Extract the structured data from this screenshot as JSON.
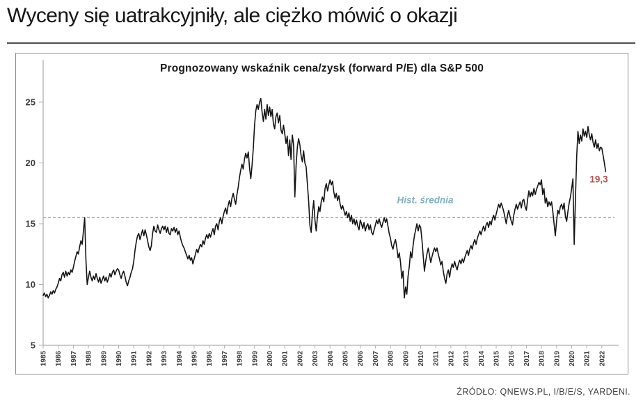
{
  "page": {
    "headline": "Wyceny się uatrakcyjniły, ale ciężko mówić o okazji",
    "source": "ŹRÓDŁO: QNEWS.PL, I/B/E/S, YARDENI."
  },
  "chart_data": {
    "type": "line",
    "title": "Prognozowany wskaźnik cena/zysk (forward P/E) dla S&P 500",
    "xlabel": "",
    "ylabel": "",
    "x_ticks": [
      1985,
      1986,
      1987,
      1988,
      1989,
      1990,
      1991,
      1992,
      1993,
      1994,
      1995,
      1996,
      1997,
      1998,
      1999,
      2000,
      2001,
      2002,
      2003,
      2004,
      2005,
      2006,
      2007,
      2008,
      2009,
      2010,
      2011,
      2012,
      2013,
      2014,
      2015,
      2016,
      2017,
      2018,
      2019,
      2020,
      2021,
      2022
    ],
    "y_ticks": [
      5,
      10,
      15,
      20,
      25
    ],
    "xlim": [
      1985,
      2022.6
    ],
    "ylim": [
      5,
      25.6
    ],
    "grid": false,
    "line_color": "#141414",
    "axis_color": "#9a9a9a",
    "tick_color": "#b0b0b0",
    "average_line": {
      "value": 15.5,
      "color": "#7db0c5",
      "style": "dashed"
    },
    "annotations": [
      {
        "text": "Hist. średnia",
        "year": 2010.3,
        "value": 16.95,
        "color": "#84afc3",
        "italic": true
      },
      {
        "text": "19,3",
        "year": 2021.8,
        "value": 18.65,
        "color": "#b6524e",
        "italic": false
      }
    ],
    "series": [
      {
        "name": "Forward P/E S&P 500",
        "start_year": 1985,
        "points_per_year": 12,
        "values": [
          9.1,
          9.3,
          9.0,
          9.2,
          8.9,
          9.1,
          9.4,
          9.2,
          9.5,
          9.3,
          9.6,
          9.8,
          10.1,
          10.5,
          10.3,
          10.8,
          11.0,
          10.6,
          11.1,
          10.7,
          11.0,
          10.8,
          11.2,
          11.0,
          11.4,
          11.9,
          12.3,
          12.7,
          12.5,
          13.1,
          13.6,
          13.3,
          14.4,
          15.5,
          12.0,
          10.0,
          10.6,
          11.1,
          10.6,
          10.3,
          10.7,
          10.4,
          10.9,
          10.5,
          10.2,
          10.6,
          10.1,
          10.4,
          10.7,
          10.3,
          10.6,
          10.2,
          10.5,
          10.9,
          10.6,
          11.0,
          11.2,
          10.8,
          11.1,
          11.3,
          11.2,
          10.8,
          10.5,
          10.9,
          11.1,
          10.7,
          10.2,
          9.9,
          10.3,
          10.6,
          11.0,
          11.3,
          11.9,
          12.8,
          13.5,
          14.0,
          14.2,
          13.7,
          14.1,
          14.5,
          14.0,
          14.5,
          14.1,
          13.6,
          13.1,
          12.8,
          13.2,
          14.2,
          14.8,
          14.4,
          14.3,
          14.9,
          14.5,
          14.2,
          14.6,
          14.8,
          14.5,
          14.8,
          14.3,
          14.7,
          14.2,
          14.1,
          14.6,
          14.4,
          14.7,
          14.3,
          14.6,
          14.1,
          14.4,
          13.9,
          13.5,
          13.2,
          13.0,
          12.7,
          12.4,
          12.1,
          12.4,
          12.0,
          12.2,
          11.7,
          12.1,
          12.5,
          12.9,
          12.6,
          13.0,
          13.3,
          13.1,
          13.6,
          13.3,
          13.8,
          14.1,
          13.8,
          14.2,
          13.9,
          14.3,
          14.6,
          14.1,
          14.8,
          15.0,
          14.5,
          15.2,
          15.5,
          15.0,
          15.6,
          16.0,
          16.3,
          15.8,
          16.5,
          16.9,
          16.4,
          17.1,
          17.5,
          17.0,
          16.6,
          17.4,
          18.0,
          18.8,
          19.4,
          19.9,
          19.5,
          20.3,
          20.8,
          20.4,
          20.9,
          19.6,
          18.7,
          19.8,
          21.2,
          23.1,
          24.3,
          24.8,
          24.4,
          25.0,
          25.3,
          24.2,
          23.4,
          24.4,
          23.6,
          24.8,
          23.9,
          24.6,
          23.8,
          24.4,
          23.2,
          22.8,
          23.8,
          24.1,
          23.3,
          23.9,
          22.7,
          22.4,
          23.1,
          22.4,
          21.6,
          22.2,
          20.6,
          21.9,
          20.3,
          22.3,
          21.5,
          17.2,
          19.8,
          21.3,
          22.0,
          21.5,
          20.6,
          20.1,
          21.0,
          20.0,
          19.7,
          18.2,
          16.8,
          14.8,
          14.3,
          15.9,
          16.9,
          15.3,
          14.4,
          15.6,
          16.4,
          16.0,
          16.8,
          17.2,
          16.8,
          17.9,
          18.3,
          17.7,
          18.2,
          18.6,
          18.2,
          18.5,
          17.6,
          17.1,
          17.5,
          16.9,
          17.3,
          16.6,
          16.2,
          16.5,
          16.1,
          15.7,
          16.0,
          15.5,
          15.9,
          15.2,
          15.7,
          15.0,
          15.4,
          14.9,
          15.3,
          14.8,
          14.5,
          15.3,
          15.0,
          14.6,
          15.1,
          14.4,
          14.8,
          15.0,
          14.5,
          14.9,
          14.3,
          14.1,
          14.5,
          14.9,
          15.3,
          15.0,
          15.4,
          15.0,
          14.7,
          15.1,
          15.5,
          15.1,
          15.4,
          14.8,
          14.2,
          13.8,
          13.2,
          12.9,
          13.4,
          13.7,
          13.1,
          12.2,
          12.6,
          11.8,
          10.5,
          11.1,
          8.9,
          9.8,
          9.2,
          10.7,
          11.5,
          12.7,
          12.2,
          13.2,
          14.0,
          14.5,
          15.0,
          14.4,
          14.9,
          14.7,
          13.7,
          12.4,
          11.1,
          11.9,
          12.5,
          13.0,
          12.4,
          11.8,
          12.3,
          12.7,
          13.0,
          12.7,
          13.0,
          12.5,
          12.1,
          11.6,
          11.9,
          11.1,
          10.5,
          10.1,
          10.9,
          11.2,
          10.6,
          11.3,
          11.7,
          11.4,
          11.9,
          11.5,
          11.2,
          11.7,
          12.0,
          11.7,
          12.1,
          11.8,
          12.2,
          12.5,
          12.8,
          12.4,
          12.9,
          13.2,
          12.9,
          13.4,
          13.7,
          13.3,
          13.8,
          14.1,
          14.4,
          14.1,
          14.5,
          14.8,
          14.4,
          14.9,
          15.1,
          14.7,
          15.2,
          14.9,
          15.4,
          15.7,
          15.3,
          15.8,
          16.2,
          16.6,
          16.3,
          16.7,
          16.4,
          16.0,
          15.5,
          15.0,
          15.7,
          16.1,
          15.6,
          15.2,
          14.9,
          15.7,
          16.2,
          16.6,
          16.2,
          16.5,
          16.8,
          16.3,
          16.9,
          17.0,
          16.4,
          16.1,
          17.0,
          17.7,
          17.2,
          17.6,
          17.3,
          17.9,
          17.4,
          17.8,
          18.1,
          18.4,
          18.2,
          18.6,
          17.4,
          17.9,
          16.7,
          17.1,
          16.4,
          16.8,
          16.5,
          16.8,
          16.0,
          15.0,
          14.0,
          15.2,
          16.1,
          15.8,
          16.4,
          16.6,
          16.2,
          16.7,
          15.6,
          15.2,
          16.0,
          16.7,
          17.2,
          17.9,
          18.7,
          13.3,
          17.0,
          20.5,
          22.6,
          21.6,
          22.3,
          21.8,
          22.8,
          22.2,
          22.6,
          22.1,
          23.0,
          22.3,
          21.9,
          22.4,
          21.7,
          21.3,
          21.9,
          21.2,
          21.6,
          21.0,
          21.3,
          21.2,
          20.6,
          20.0,
          19.3
        ]
      }
    ]
  }
}
